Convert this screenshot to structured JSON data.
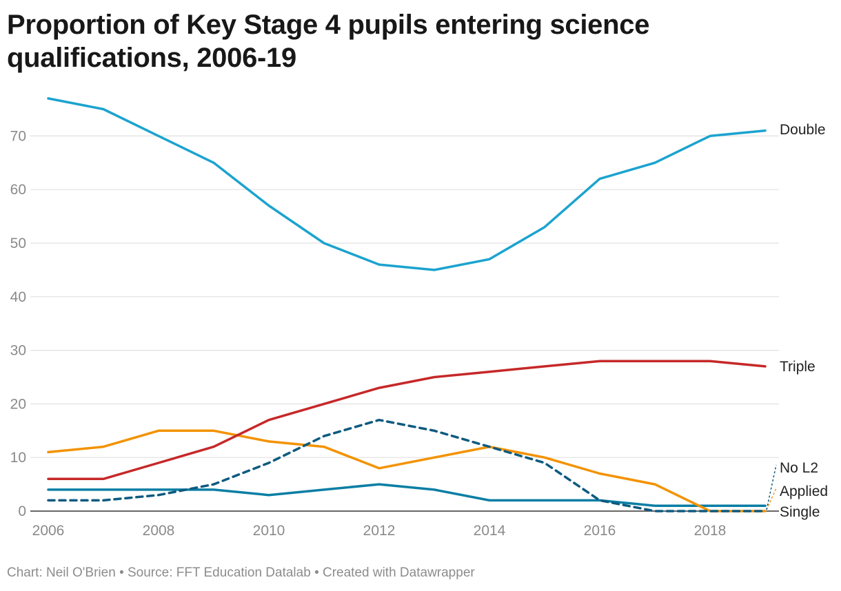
{
  "title": "Proportion of Key Stage 4 pupils entering science qualifications, 2006-19",
  "footer": "Chart: Neil O'Brien • Source: FFT Education Datalab • Created with Datawrapper",
  "chart_data": {
    "type": "line",
    "title": "Proportion of Key Stage 4 pupils entering science qualifications, 2006-19",
    "xlabel": "",
    "ylabel": "",
    "x": [
      2006,
      2007,
      2008,
      2009,
      2010,
      2011,
      2012,
      2013,
      2014,
      2015,
      2016,
      2017,
      2018,
      2019
    ],
    "xticks": [
      "2006",
      "2008",
      "2010",
      "2012",
      "2014",
      "2016",
      "2018"
    ],
    "yticks": [
      "0",
      "10",
      "20",
      "30",
      "40",
      "50",
      "60",
      "70"
    ],
    "ylim": [
      0,
      77
    ],
    "grid": true,
    "series": [
      {
        "name": "Double",
        "color": "#1ba3cf",
        "dashed": false,
        "values": [
          77,
          75,
          70,
          65,
          57,
          50,
          46,
          45,
          47,
          53,
          62,
          65,
          70,
          71
        ]
      },
      {
        "name": "Triple",
        "color": "#c62828",
        "dashed": false,
        "values": [
          6,
          6,
          9,
          12,
          17,
          20,
          23,
          25,
          26,
          27,
          28,
          28,
          28,
          27
        ]
      },
      {
        "name": "No L2",
        "color": "#0d5a80",
        "dashed": true,
        "values": [
          2,
          2,
          3,
          5,
          9,
          14,
          17,
          15,
          12,
          9,
          2,
          0,
          0,
          0
        ]
      },
      {
        "name": "Applied",
        "color": "#f39200",
        "dashed": false,
        "values": [
          11,
          12,
          15,
          15,
          13,
          12,
          8,
          10,
          12,
          10,
          7,
          5,
          0,
          0
        ]
      },
      {
        "name": "Single",
        "color": "#0a7ea4",
        "dashed": false,
        "values": [
          4,
          4,
          4,
          4,
          3,
          4,
          5,
          4,
          2,
          2,
          2,
          1,
          1,
          1
        ]
      }
    ]
  }
}
